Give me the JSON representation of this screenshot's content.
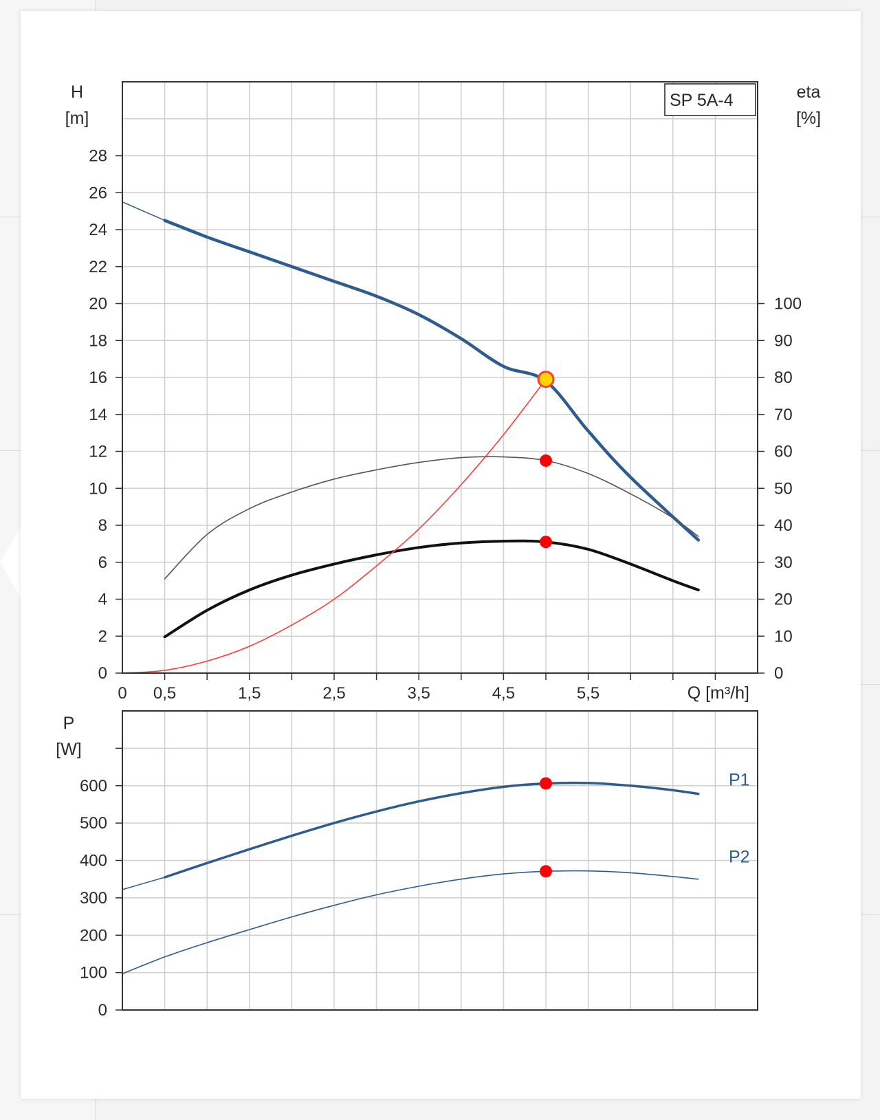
{
  "chart_data": [
    {
      "type": "line",
      "model_label": "SP 5A-4",
      "xlabel": "Q [m³/h]",
      "x_ticks": [
        "0",
        "0,5",
        "1,5",
        "2,5",
        "3,5",
        "4,5",
        "5,5"
      ],
      "x_tick_values": [
        0,
        0.5,
        1.5,
        2.5,
        3.5,
        4.5,
        5.5
      ],
      "xlim": [
        0,
        7.5
      ],
      "y_left": {
        "label_top": "H",
        "label_unit": "[m]",
        "ticks": [
          "0",
          "2",
          "4",
          "6",
          "8",
          "10",
          "12",
          "14",
          "16",
          "18",
          "20",
          "22",
          "24",
          "26",
          "28"
        ],
        "tick_values": [
          0,
          2,
          4,
          6,
          8,
          10,
          12,
          14,
          16,
          18,
          20,
          22,
          24,
          26,
          28
        ],
        "ylim": [
          0,
          32
        ]
      },
      "y_right": {
        "label_top": "eta",
        "label_unit": "[%]",
        "ticks": [
          "0",
          "10",
          "20",
          "30",
          "40",
          "50",
          "60",
          "70",
          "80",
          "90",
          "100"
        ],
        "tick_values": [
          0,
          10,
          20,
          30,
          40,
          50,
          60,
          70,
          80,
          90,
          100
        ],
        "ylim": [
          0,
          160
        ]
      },
      "grid": true,
      "series": [
        {
          "key": "head",
          "axis": "left",
          "color": "#2d5c8e",
          "width": 4.5,
          "x": [
            0.5,
            1.0,
            1.5,
            2.0,
            2.5,
            3.0,
            3.5,
            4.0,
            4.5,
            5.0,
            5.5,
            6.0,
            6.8
          ],
          "y": [
            24.5,
            23.6,
            22.8,
            22.0,
            21.2,
            20.4,
            19.4,
            18.1,
            16.6,
            15.8,
            13.1,
            10.6,
            7.2
          ],
          "extension_x": [
            0,
            0.5
          ],
          "extension_y": [
            25.5,
            24.5
          ]
        },
        {
          "key": "eta_thin",
          "axis": "right",
          "color": "#555555",
          "width": 1.6,
          "x": [
            0.5,
            1.0,
            1.5,
            2.0,
            2.5,
            3.0,
            3.5,
            4.0,
            4.5,
            5.0,
            5.5,
            6.0,
            6.5,
            6.8
          ],
          "y": [
            25.5,
            37.5,
            44.5,
            49.0,
            52.5,
            55.0,
            57.0,
            58.3,
            58.5,
            57.5,
            54.0,
            48.5,
            42.0,
            37.0
          ]
        },
        {
          "key": "eta_thick",
          "axis": "right",
          "color": "#111111",
          "width": 4,
          "x": [
            0.5,
            1.0,
            1.5,
            2.0,
            2.5,
            3.0,
            3.5,
            4.0,
            4.5,
            5.0,
            5.5,
            6.0,
            6.5,
            6.8
          ],
          "y": [
            9.8,
            17.0,
            22.5,
            26.5,
            29.5,
            32.0,
            34.0,
            35.2,
            35.7,
            35.5,
            33.5,
            29.5,
            25.0,
            22.5
          ]
        },
        {
          "key": "system",
          "axis": "left",
          "color": "#ff3a3a",
          "width": 1.6,
          "x": [
            0,
            0.5,
            1.0,
            1.5,
            2.0,
            2.5,
            3.0,
            3.5,
            4.0,
            4.5,
            5.0
          ],
          "y": [
            0,
            0.15,
            0.65,
            1.45,
            2.6,
            4.0,
            5.8,
            7.8,
            10.2,
            12.9,
            15.9
          ]
        }
      ],
      "points": [
        {
          "key": "duty-point",
          "axis": "left",
          "x": 5.0,
          "y": 15.9,
          "color": "#ffd600",
          "stroke": "#ff3a3a"
        },
        {
          "key": "eta-thin-point",
          "axis": "right",
          "x": 5.0,
          "y": 57.5,
          "color": "#ff0000"
        },
        {
          "key": "eta-thick-point",
          "axis": "right",
          "x": 5.0,
          "y": 35.5,
          "color": "#ff0000"
        }
      ]
    },
    {
      "type": "line",
      "xlim": [
        0,
        7.5
      ],
      "y_left": {
        "label_top": "P",
        "label_unit": "[W]",
        "ticks": [
          "0",
          "100",
          "200",
          "300",
          "400",
          "500",
          "600"
        ],
        "tick_values": [
          0,
          100,
          200,
          300,
          400,
          500,
          600
        ],
        "ylim": [
          0,
          800
        ]
      },
      "grid": true,
      "series": [
        {
          "key": "P1",
          "name": "P1",
          "color": "#2d5c8e",
          "width": 3.5,
          "x": [
            0.5,
            1.0,
            1.5,
            2.0,
            2.5,
            3.0,
            3.5,
            4.0,
            4.5,
            5.0,
            5.5,
            6.0,
            6.5,
            6.8
          ],
          "y": [
            355,
            393,
            430,
            466,
            500,
            531,
            558,
            580,
            597,
            606,
            607,
            600,
            588,
            578
          ],
          "extension_x": [
            0,
            0.5
          ],
          "extension_y": [
            322,
            355
          ]
        },
        {
          "key": "P2",
          "name": "P2",
          "color": "#2d5c8e",
          "width": 1.6,
          "x": [
            0,
            0.5,
            1.0,
            1.5,
            2.0,
            2.5,
            3.0,
            3.5,
            4.0,
            4.5,
            5.0,
            5.5,
            6.0,
            6.5,
            6.8
          ],
          "y": [
            97,
            142,
            180,
            215,
            249,
            280,
            308,
            331,
            350,
            364,
            371,
            372,
            367,
            357,
            350
          ]
        }
      ],
      "points": [
        {
          "key": "p1-point",
          "x": 5.0,
          "y": 606,
          "color": "#ff0000"
        },
        {
          "key": "p2-point",
          "x": 5.0,
          "y": 371,
          "color": "#ff0000"
        }
      ]
    }
  ]
}
